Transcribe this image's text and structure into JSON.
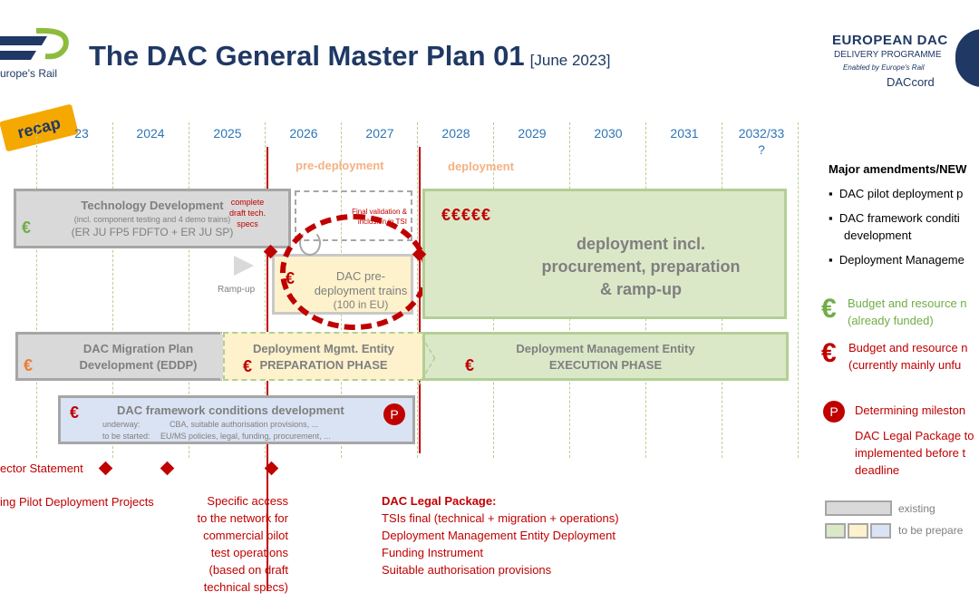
{
  "header": {
    "logo_text": "urope's Rail",
    "title": "The DAC General Master Plan 01",
    "date": "[June 2023]",
    "programme_logo": {
      "line1": "EUROPEAN DAC",
      "line2": "DELIVERY PROGRAMME",
      "line3": "Enabled by Europe's Rail",
      "line4": "DACcord"
    }
  },
  "recap_badge": "recap",
  "timeline": {
    "years": [
      "23",
      "2024",
      "2025",
      "2026",
      "2027",
      "2028",
      "2029",
      "2030",
      "2031",
      "2032/33",
      "?"
    ],
    "pre_deployment_label": "pre-deployment",
    "deployment_label": "deployment"
  },
  "boxes": {
    "tech_dev": {
      "title": "Technology Development",
      "sub1": "(incl. component testing and 4 demo trains)",
      "sub2": "(ER JU FP5 FDFTO + ER JU SP)",
      "euro": "€"
    },
    "draft_specs": "complete draft tech. specs",
    "final_validation": "Final validation & inclusion in TSI",
    "ramp_up": "Ramp-up",
    "pre_deploy_trains": {
      "line1": "DAC pre-",
      "line2": "deployment trains",
      "line3": "(100 in EU)",
      "euro": "€"
    },
    "deployment": {
      "euro": "€€€€€",
      "line1": "deployment incl.",
      "line2": "procurement, preparation",
      "line3": "& ramp-up"
    },
    "migration_plan": {
      "line1": "DAC Migration Plan",
      "line2": "Development (EDDP)",
      "euro": "€"
    },
    "dme_prep": {
      "line1": "Deployment Mgmt. Entity",
      "line2": "PREPARATION PHASE",
      "euro": "€"
    },
    "dme_exec": {
      "line1": "Deployment Management Entity",
      "line2": "EXECUTION PHASE",
      "euro": "€"
    },
    "framework": {
      "title": "DAC framework conditions development",
      "underway_label": "underway:",
      "underway_text": "CBA, suitable authorisation provisions, ...",
      "tbs_label": "to be started:",
      "tbs_text": "EU/MS policies, legal, funding, procurement, ...",
      "euro": "€",
      "p": "P"
    }
  },
  "milestones": {
    "sector_statement": "ector Statement",
    "pilot_projects": "ing Pilot Deployment Projects",
    "specific_access": [
      "Specific access",
      "to the network for",
      "commercial pilot",
      "test operations",
      "(based on draft",
      "technical specs)"
    ],
    "legal_package": {
      "title": "DAC Legal Package:",
      "items": [
        "TSIs final (technical + migration + operations)",
        "Deployment Management Entity Deployment",
        "Funding Instrument",
        "Suitable authorisation provisions"
      ]
    }
  },
  "sidebar": {
    "heading": "Major amendments/NEW",
    "bullets": [
      "DAC pilot deployment p",
      "DAC framework conditi",
      "development",
      "Deployment Manageme"
    ],
    "legend_green": [
      "Budget and resource n",
      "(already funded)"
    ],
    "legend_red": [
      "Budget and resource n",
      "(currently mainly unfu"
    ],
    "legend_p_title": "Determining mileston",
    "legend_p_text": [
      "DAC Legal Package to",
      "implemented before t",
      "deadline"
    ],
    "existing": "existing",
    "to_be_prepared": "to be prepare"
  }
}
